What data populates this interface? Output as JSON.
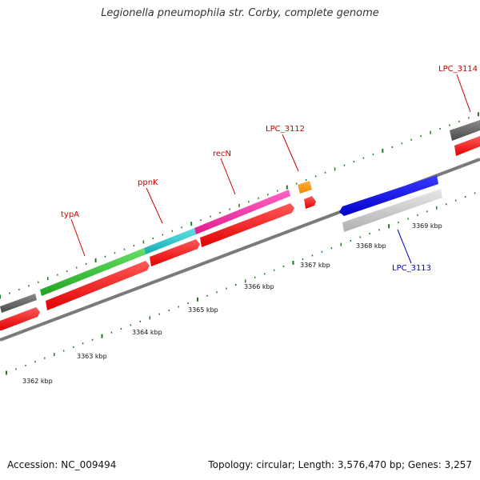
{
  "title": "Legionella pneumophila str. Corby, complete genome",
  "footer": {
    "accession": "Accession: NC_009494",
    "summary": "Topology: circular; Length: 3,576,470 bp; Genes: 3,257"
  },
  "colors": {
    "tick": "#1f7a1f",
    "backbone": "#888888",
    "gene_red": "#ff1a1a",
    "label_red": "#cc0000",
    "label_blue": "#0000cc"
  },
  "scale_labels": [
    "3362 kbp",
    "3363 kbp",
    "3364 kbp",
    "3365 kbp",
    "3366 kbp",
    "3367 kbp",
    "3368 kbp",
    "3369 kbp"
  ],
  "gene_labels": [
    {
      "text": "typA",
      "color": "#cc0000"
    },
    {
      "text": "ppnK",
      "color": "#cc0000"
    },
    {
      "text": "recN",
      "color": "#cc0000"
    },
    {
      "text": "LPC_3112",
      "color": "#cc0000"
    },
    {
      "text": "LPC_3114",
      "color": "#cc0000"
    },
    {
      "text": "LPC_3113",
      "color": "#0000cc"
    }
  ]
}
